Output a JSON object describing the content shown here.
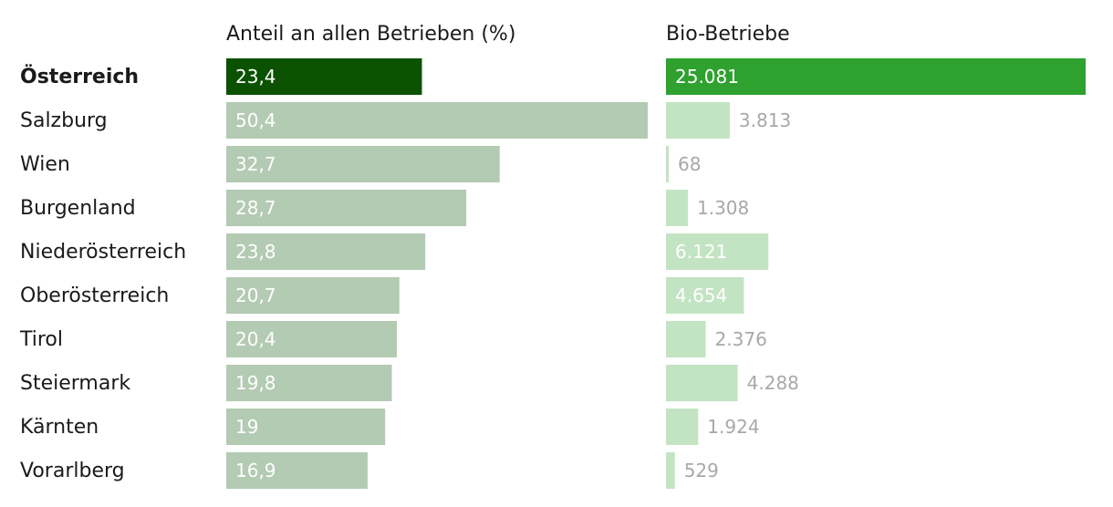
{
  "chart_data": {
    "type": "bar",
    "columns": [
      {
        "title": "Anteil an allen Betrieben (%)",
        "max": 50.4
      },
      {
        "title": "Bio-Betriebe",
        "max": 25081
      }
    ],
    "rows": [
      {
        "region": "Österreich",
        "share": 23.4,
        "share_label": "23,4",
        "farms": 25081,
        "farms_label": "25.081",
        "highlight": true
      },
      {
        "region": "Salzburg",
        "share": 50.4,
        "share_label": "50,4",
        "farms": 3813,
        "farms_label": "3.813"
      },
      {
        "region": "Wien",
        "share": 32.7,
        "share_label": "32,7",
        "farms": 68,
        "farms_label": "68"
      },
      {
        "region": "Burgenland",
        "share": 28.7,
        "share_label": "28,7",
        "farms": 1308,
        "farms_label": "1.308"
      },
      {
        "region": "Niederösterreich",
        "share": 23.8,
        "share_label": "23,8",
        "farms": 6121,
        "farms_label": "6.121"
      },
      {
        "region": "Oberösterreich",
        "share": 20.7,
        "share_label": "20,7",
        "farms": 4654,
        "farms_label": "4.654"
      },
      {
        "region": "Tirol",
        "share": 20.4,
        "share_label": "20,4",
        "farms": 2376,
        "farms_label": "2.376"
      },
      {
        "region": "Steiermark",
        "share": 19.8,
        "share_label": "19,8",
        "farms": 4288,
        "farms_label": "4.288"
      },
      {
        "region": "Kärnten",
        "share": 19,
        "share_label": "19",
        "farms": 1924,
        "farms_label": "1.924"
      },
      {
        "region": "Vorarlberg",
        "share": 16.9,
        "share_label": "16,9",
        "farms": 529,
        "farms_label": "529"
      }
    ],
    "colors": {
      "share_highlight": "#0b5200",
      "share_normal": "#b3cab3",
      "farms_highlight": "#2ea12e",
      "farms_normal": "#c2e4c2",
      "label_inside": "#ffffff",
      "label_outside": "#a8a8a8",
      "text": "#1a1a1a"
    }
  }
}
